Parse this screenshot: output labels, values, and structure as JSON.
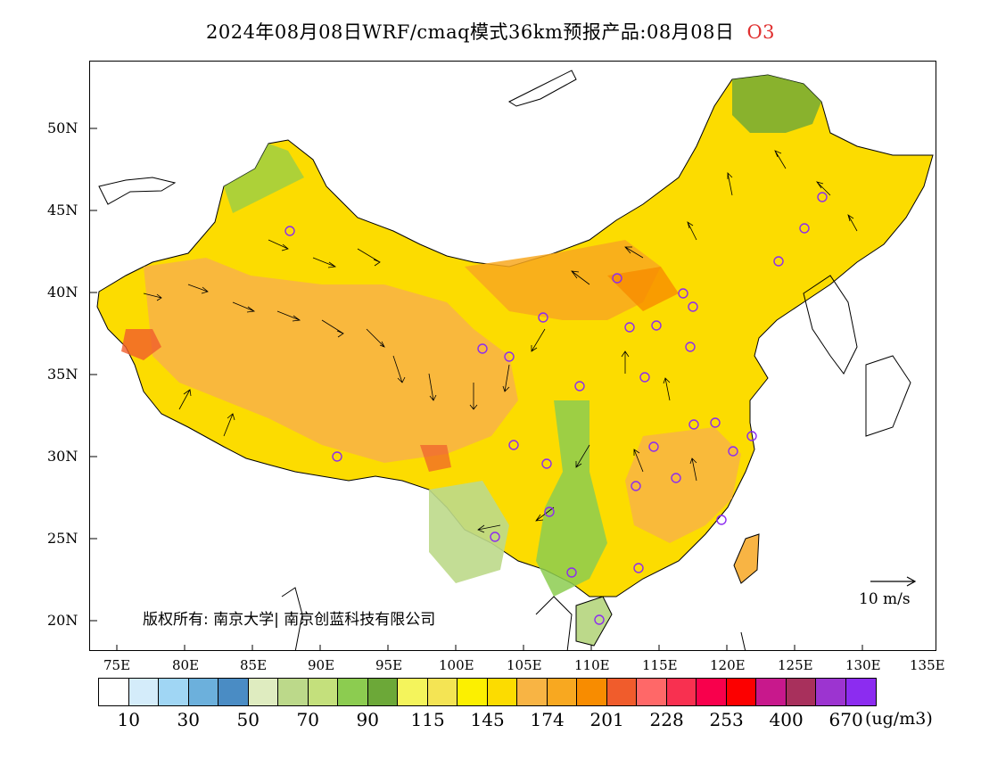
{
  "title": {
    "main": "2024年08月08日WRF/cmaq模式36km预报产品:08月08日",
    "pollutant": "O3"
  },
  "map": {
    "lat_labels": [
      "50N",
      "45N",
      "40N",
      "35N",
      "30N",
      "25N",
      "20N"
    ],
    "lon_labels": [
      "75E",
      "80E",
      "85E",
      "90E",
      "95E",
      "100E",
      "105E",
      "110E",
      "115E",
      "120E",
      "125E",
      "130E",
      "135E"
    ],
    "copyright": "版权所有: 南京大学| 南京创蓝科技有限公司",
    "wind_reference": "10 m/s"
  },
  "legend": {
    "colors": [
      "#ffffff",
      "#d4ecfa",
      "#a0d6f4",
      "#6cb0dc",
      "#4a8cc4",
      "#dfecc0",
      "#bcd98a",
      "#c4e07c",
      "#8ccc50",
      "#6ca838",
      "#f4f45c",
      "#f4e454",
      "#fcf000",
      "#fcdc00",
      "#f8b444",
      "#f8a820",
      "#f88c00",
      "#f05c2c",
      "#ff6868",
      "#f83050",
      "#f8004c",
      "#fc0000",
      "#c8188c",
      "#a8305c",
      "#9c34d0",
      "#8c2cf0"
    ],
    "labels": [
      "10",
      "30",
      "50",
      "70",
      "90",
      "115",
      "145",
      "174",
      "201",
      "228",
      "253",
      "400",
      "670"
    ],
    "unit": "(ug/m3)"
  }
}
